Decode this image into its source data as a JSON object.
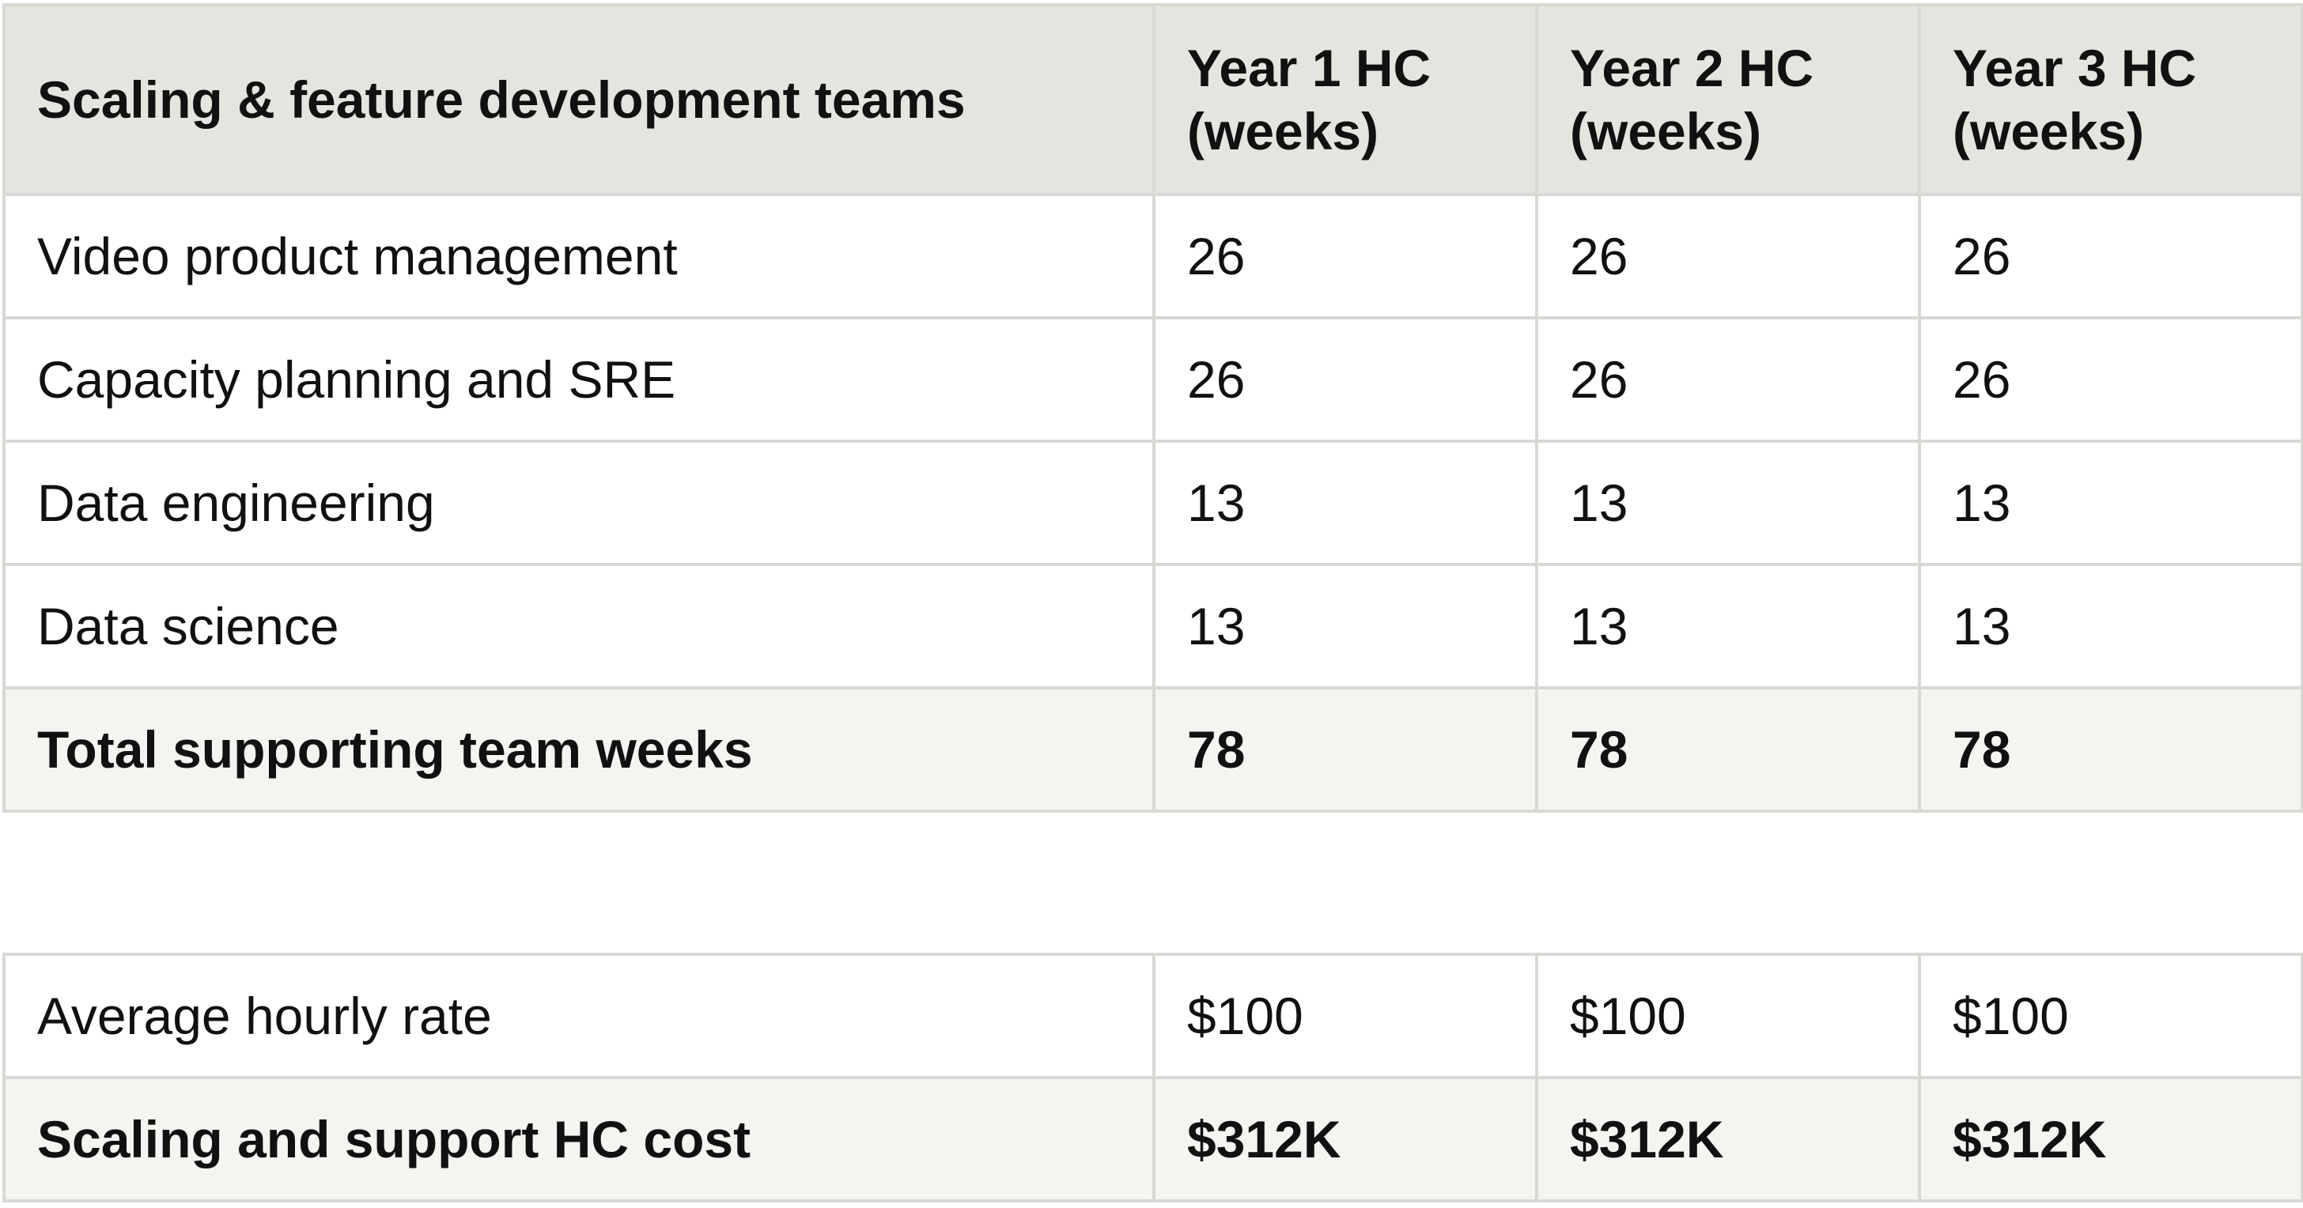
{
  "main_table": {
    "headers": [
      "Scaling & feature development teams",
      "Year 1 HC (weeks)",
      "Year 2 HC (weeks)",
      "Year 3 HC (weeks)"
    ],
    "rows": [
      [
        "Video product management",
        "26",
        "26",
        "26"
      ],
      [
        "Capacity planning and SRE",
        "26",
        "26",
        "26"
      ],
      [
        "Data engineering",
        "13",
        "13",
        "13"
      ],
      [
        "Data science",
        "13",
        "13",
        "13"
      ]
    ],
    "total": [
      "Total supporting team weeks",
      "78",
      "78",
      "78"
    ]
  },
  "cost_table": {
    "rate": [
      "Average hourly rate",
      "$100",
      "$100",
      "$100"
    ],
    "total": [
      "Scaling and support HC cost",
      "$312K",
      "$312K",
      "$312K"
    ]
  },
  "colors": {
    "header_bg": "#e5e5df",
    "total_bg": "#f3f5f1",
    "border": "#d8d8d4"
  }
}
